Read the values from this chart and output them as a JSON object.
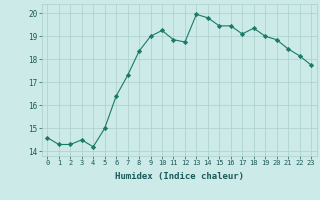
{
  "x": [
    0,
    1,
    2,
    3,
    4,
    5,
    6,
    7,
    8,
    9,
    10,
    11,
    12,
    13,
    14,
    15,
    16,
    17,
    18,
    19,
    20,
    21,
    22,
    23
  ],
  "y": [
    14.6,
    14.3,
    14.3,
    14.5,
    14.2,
    15.0,
    16.4,
    17.3,
    18.35,
    19.0,
    19.25,
    18.85,
    18.75,
    19.95,
    19.8,
    19.45,
    19.45,
    19.1,
    19.35,
    19.0,
    18.85,
    18.45,
    18.15,
    17.75
  ],
  "line_color": "#1a7a6a",
  "marker": "D",
  "marker_size": 2.2,
  "bg_color": "#cceae7",
  "grid_color": "#aacfcd",
  "xlabel": "Humidex (Indice chaleur)",
  "xlim": [
    -0.5,
    23.5
  ],
  "ylim": [
    13.8,
    20.4
  ],
  "yticks": [
    14,
    15,
    16,
    17,
    18,
    19,
    20
  ],
  "xticks": [
    0,
    1,
    2,
    3,
    4,
    5,
    6,
    7,
    8,
    9,
    10,
    11,
    12,
    13,
    14,
    15,
    16,
    17,
    18,
    19,
    20,
    21,
    22,
    23
  ]
}
